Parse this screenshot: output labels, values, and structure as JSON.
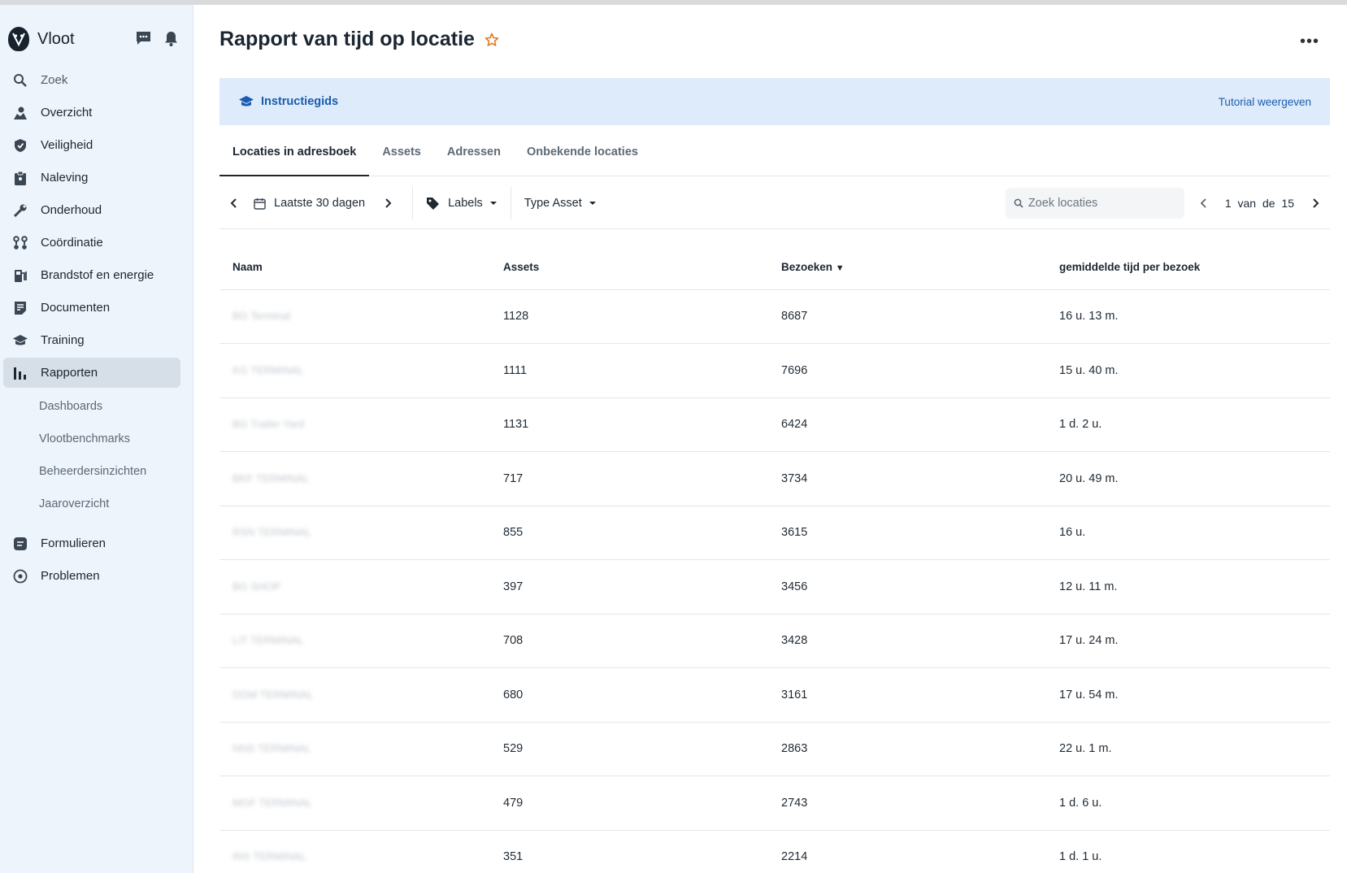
{
  "app": {
    "name": "Vloot"
  },
  "sidebar": {
    "items": [
      {
        "label": "Zoek",
        "icon": "search-icon"
      },
      {
        "label": "Overzicht",
        "icon": "map-icon"
      },
      {
        "label": "Veiligheid",
        "icon": "shield-icon"
      },
      {
        "label": "Naleving",
        "icon": "clipboard-icon"
      },
      {
        "label": "Onderhoud",
        "icon": "wrench-icon"
      },
      {
        "label": "Coördinatie",
        "icon": "route-icon"
      },
      {
        "label": "Brandstof en energie",
        "icon": "fuel-icon"
      },
      {
        "label": "Documenten",
        "icon": "document-icon"
      },
      {
        "label": "Training",
        "icon": "graduation-cap-icon"
      },
      {
        "label": "Rapporten",
        "icon": "bar-chart-icon"
      }
    ],
    "sub_items": [
      "Dashboards",
      "Vlootbenchmarks",
      "Beheerdersinzichten",
      "Jaaroverzicht"
    ],
    "bottom_items": [
      {
        "label": "Formulieren",
        "icon": "form-icon"
      },
      {
        "label": "Problemen",
        "icon": "issue-icon"
      }
    ]
  },
  "page": {
    "title": "Rapport van tijd op locatie"
  },
  "guide": {
    "label": "Instructiegids",
    "link": "Tutorial weergeven"
  },
  "tabs": [
    "Locaties in adresboek",
    "Assets",
    "Adressen",
    "Onbekende locaties"
  ],
  "toolbar": {
    "date_range": "Laatste 30 dagen",
    "labels": "Labels",
    "asset_type": "Type Asset",
    "search_placeholder": "Zoek locaties",
    "pagination": "1 van de 15"
  },
  "table": {
    "headers": [
      "Naam",
      "Assets",
      "Bezoeken",
      "gemiddelde tijd per bezoek"
    ],
    "sort_indicator": "▼",
    "rows": [
      {
        "naam": "BG Terminal",
        "assets": "1128",
        "bezoeken": "8687",
        "tijd": "16 u. 13 m."
      },
      {
        "naam": "KG TERMINAL",
        "assets": "1111",
        "bezoeken": "7696",
        "tijd": "15 u. 40 m."
      },
      {
        "naam": "BG Trailer Yard",
        "assets": "1131",
        "bezoeken": "6424",
        "tijd": "1 d. 2 u."
      },
      {
        "naam": "BKF TERMINAL",
        "assets": "717",
        "bezoeken": "3734",
        "tijd": "20 u. 49 m."
      },
      {
        "naam": "RSN TERMINAL",
        "assets": "855",
        "bezoeken": "3615",
        "tijd": "16 u."
      },
      {
        "naam": "BG SHOP",
        "assets": "397",
        "bezoeken": "3456",
        "tijd": "12 u. 11 m."
      },
      {
        "naam": "LIT TERMINAL",
        "assets": "708",
        "bezoeken": "3428",
        "tijd": "17 u. 24 m."
      },
      {
        "naam": "DGM TERMINAL",
        "assets": "680",
        "bezoeken": "3161",
        "tijd": "17 u. 54 m."
      },
      {
        "naam": "NNS TERMINAL",
        "assets": "529",
        "bezoeken": "2863",
        "tijd": "22 u. 1 m."
      },
      {
        "naam": "MGF TERMINAL",
        "assets": "479",
        "bezoeken": "2743",
        "tijd": "1 d. 6 u."
      },
      {
        "naam": "INS TERMINAL",
        "assets": "351",
        "bezoeken": "2214",
        "tijd": "1 d. 1 u."
      }
    ]
  }
}
